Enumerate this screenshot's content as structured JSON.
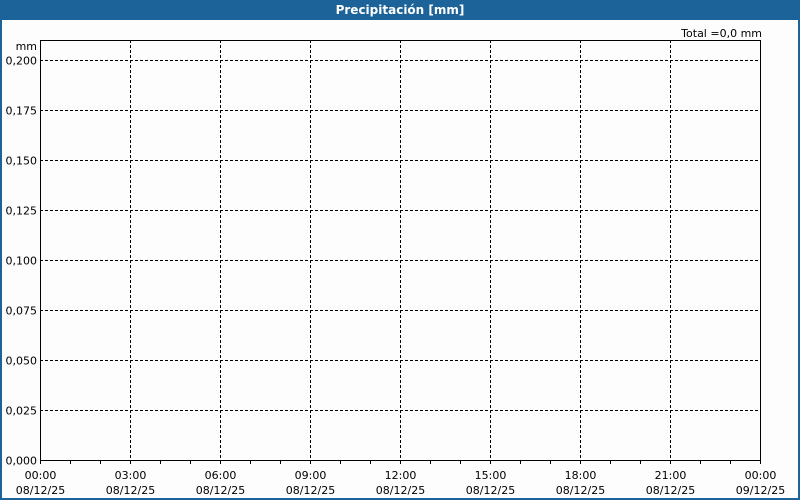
{
  "window": {
    "title": "Precipitación [mm]",
    "header_color": "#1c6399"
  },
  "chart_data": {
    "type": "bar",
    "title": "Precipitación [mm]",
    "ylabel": "mm",
    "xlabel": "",
    "total_label": "Total =0,0 mm",
    "ylim": [
      0,
      0.21
    ],
    "yticks": [
      "0,000",
      "0,025",
      "0,050",
      "0,075",
      "0,100",
      "0,125",
      "0,150",
      "0,175",
      "0,200"
    ],
    "ytick_values": [
      0,
      0.025,
      0.05,
      0.075,
      0.1,
      0.125,
      0.15,
      0.175,
      0.2
    ],
    "xlim": [
      "08/12/25 00:00",
      "09/12/25 00:00"
    ],
    "xticks": [
      {
        "time": "00:00",
        "date": "08/12/25"
      },
      {
        "time": "03:00",
        "date": "08/12/25"
      },
      {
        "time": "06:00",
        "date": "08/12/25"
      },
      {
        "time": "09:00",
        "date": "08/12/25"
      },
      {
        "time": "12:00",
        "date": "08/12/25"
      },
      {
        "time": "15:00",
        "date": "08/12/25"
      },
      {
        "time": "18:00",
        "date": "08/12/25"
      },
      {
        "time": "21:00",
        "date": "08/12/25"
      },
      {
        "time": "00:00",
        "date": "09/12/25"
      }
    ],
    "grid": true,
    "grid_style": "dashed",
    "series": [
      {
        "values": []
      }
    ]
  }
}
